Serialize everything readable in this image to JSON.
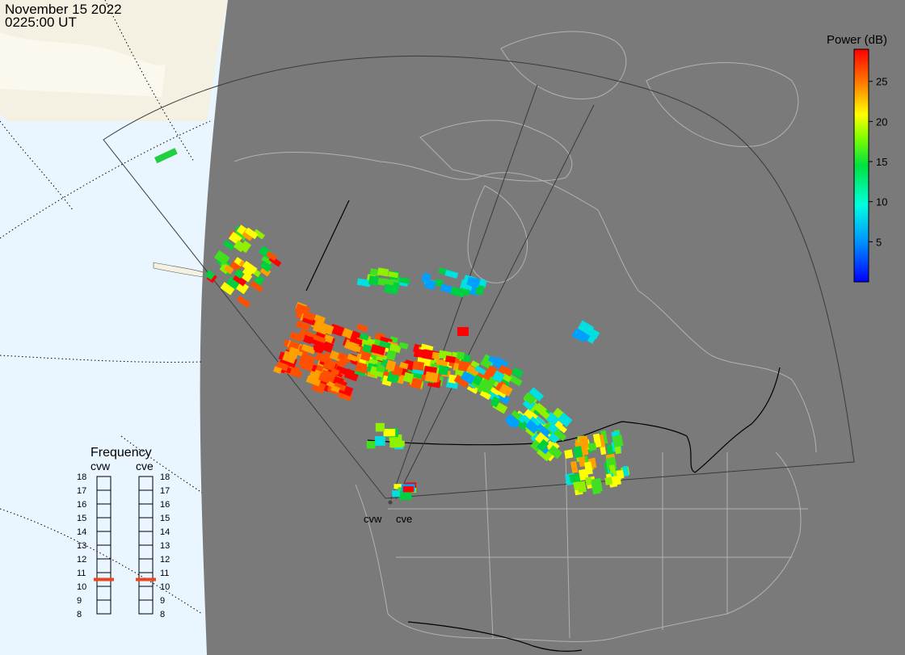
{
  "header": {
    "date": "November 15 2022",
    "time": "0225:00 UT"
  },
  "colorbar": {
    "title": "Power (dB)",
    "ticks": [
      "25",
      "20",
      "15",
      "10",
      "5"
    ]
  },
  "frequency_panel": {
    "title": "Frequency",
    "radars": [
      {
        "code": "cvw",
        "selected_mhz": 10.5
      },
      {
        "code": "cve",
        "selected_mhz": 10.5
      }
    ],
    "scale": [
      "18",
      "17",
      "16",
      "15",
      "14",
      "13",
      "12",
      "11",
      "10",
      "9",
      "8"
    ]
  },
  "sites": [
    {
      "label": "cvw"
    },
    {
      "label": "cve"
    }
  ],
  "colors": {
    "land": "#7a7a7a",
    "ocean": "#e9f5ff",
    "night_land": "#f5f1e2",
    "marker": "#e8461e"
  }
}
